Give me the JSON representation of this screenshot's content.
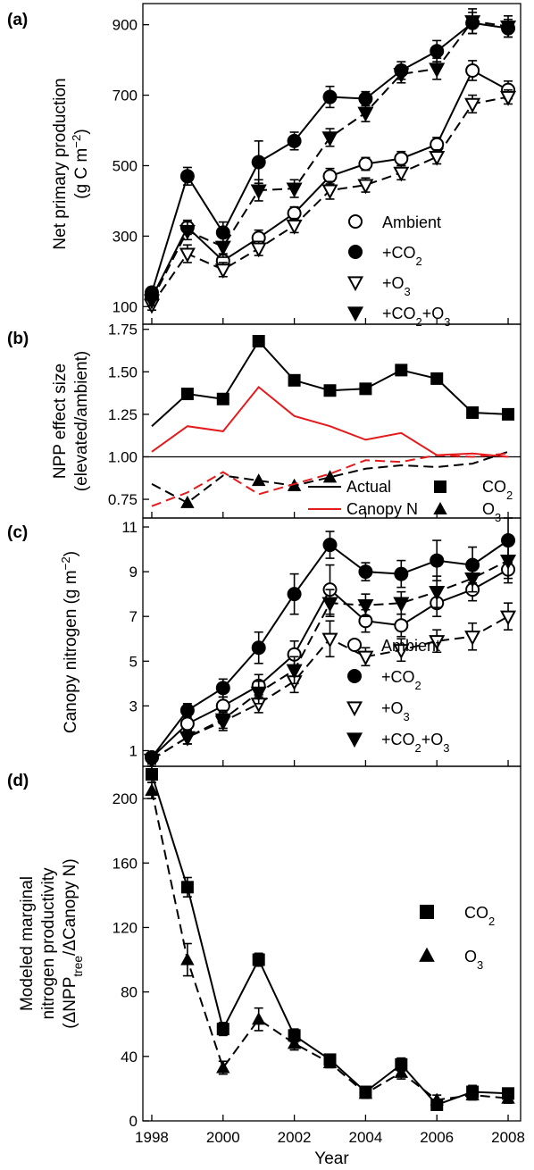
{
  "chart_data": [
    {
      "panel": "(a)",
      "type": "line",
      "ylabel_lines": [
        "Net primary production",
        "(g C m⁻²)"
      ],
      "ylim": [
        50,
        960
      ],
      "yticks": [
        100,
        300,
        500,
        700,
        900
      ],
      "x": [
        1998,
        1999,
        2000,
        2001,
        2002,
        2003,
        2004,
        2005,
        2006,
        2007,
        2008
      ],
      "series": [
        {
          "name": "Ambient",
          "marker": "circle-open",
          "dash": false,
          "values": [
            125,
            325,
            230,
            295,
            365,
            470,
            505,
            520,
            560,
            770,
            715
          ],
          "err": [
            15,
            20,
            20,
            22,
            18,
            22,
            18,
            20,
            20,
            28,
            25
          ]
        },
        {
          "name": "+CO₂",
          "marker": "circle-filled",
          "dash": false,
          "values": [
            140,
            470,
            310,
            510,
            570,
            695,
            690,
            770,
            825,
            905,
            890
          ],
          "err": [
            15,
            25,
            30,
            60,
            25,
            30,
            20,
            25,
            30,
            30,
            25
          ]
        },
        {
          "name": "+O₃",
          "marker": "tri-down-open",
          "dash": true,
          "values": [
            105,
            250,
            205,
            265,
            330,
            430,
            445,
            480,
            525,
            675,
            695
          ],
          "err": [
            15,
            25,
            20,
            20,
            20,
            25,
            20,
            20,
            20,
            25,
            20
          ]
        },
        {
          "name": "+CO₂+O₃",
          "marker": "tri-down-filled",
          "dash": true,
          "values": [
            118,
            315,
            270,
            430,
            435,
            580,
            650,
            760,
            775,
            910,
            895
          ],
          "err": [
            15,
            25,
            30,
            30,
            25,
            25,
            25,
            25,
            30,
            35,
            30
          ]
        }
      ],
      "legend": [
        "Ambient",
        "+CO₂",
        "+O₃",
        "+CO₂+O₃"
      ]
    },
    {
      "panel": "(b)",
      "type": "line",
      "ylabel_lines": [
        "NPP effect size",
        "(elevated/ambient)"
      ],
      "ylim": [
        0.64,
        1.78
      ],
      "yticks": [
        0.75,
        1.0,
        1.25,
        1.5,
        1.75
      ],
      "ytick_labels": [
        "0.75",
        "1.00",
        "1.25",
        "1.50",
        "1.75"
      ],
      "reference_y": 1.0,
      "x": [
        1998,
        1999,
        2000,
        2001,
        2002,
        2003,
        2004,
        2005,
        2006,
        2007,
        2008
      ],
      "series": [
        {
          "name": "CO₂ actual",
          "color": "#000000",
          "dash": false,
          "marker": "square",
          "values": [
            1.18,
            1.37,
            1.34,
            1.68,
            1.45,
            1.39,
            1.4,
            1.51,
            1.46,
            1.26,
            1.25
          ]
        },
        {
          "name": "CO₂ canopy N",
          "color": "#e41a1c",
          "dash": false,
          "marker": "none",
          "values": [
            1.03,
            1.18,
            1.15,
            1.41,
            1.24,
            1.18,
            1.1,
            1.14,
            1.01,
            1.02,
            1.0
          ]
        },
        {
          "name": "O₃ actual",
          "color": "#000000",
          "dash": true,
          "marker": "triangle",
          "values": [
            0.84,
            0.73,
            0.89,
            0.86,
            0.83,
            0.88,
            0.93,
            0.95,
            0.94,
            0.96,
            1.03
          ]
        },
        {
          "name": "O₃ canopy N",
          "color": "#e41a1c",
          "dash": true,
          "marker": "none",
          "values": [
            0.71,
            0.79,
            0.91,
            0.78,
            0.84,
            0.9,
            0.98,
            0.97,
            1.01,
            1.0,
            1.02
          ]
        }
      ],
      "legend": {
        "lines": [
          "Actual",
          "Canopy N"
        ],
        "markers": [
          "CO₂",
          "O₃"
        ]
      }
    },
    {
      "panel": "(c)",
      "type": "line",
      "ylabel_lines": [
        "Canopy nitrogen (g m⁻²)"
      ],
      "ylim": [
        0.3,
        11.4
      ],
      "yticks": [
        1,
        3,
        5,
        7,
        9,
        11
      ],
      "x": [
        1998,
        1999,
        2000,
        2001,
        2002,
        2003,
        2004,
        2005,
        2006,
        2007,
        2008
      ],
      "series": [
        {
          "name": "Ambient",
          "marker": "circle-open",
          "dash": false,
          "values": [
            0.7,
            2.2,
            3.0,
            3.9,
            5.3,
            8.2,
            6.8,
            6.6,
            7.6,
            8.2,
            9.1
          ],
          "err": [
            0.2,
            0.4,
            0.4,
            0.5,
            0.6,
            1.1,
            0.5,
            0.5,
            0.6,
            0.5,
            0.6
          ]
        },
        {
          "name": "+CO₂",
          "marker": "circle-filled",
          "dash": false,
          "values": [
            0.7,
            2.8,
            3.8,
            5.6,
            8.0,
            10.2,
            9.0,
            8.9,
            9.5,
            9.3,
            10.4
          ],
          "err": [
            0.2,
            0.3,
            0.4,
            0.7,
            0.9,
            0.6,
            0.4,
            0.6,
            0.9,
            0.8,
            1.0
          ]
        },
        {
          "name": "+O₃",
          "marker": "tri-down-open",
          "dash": true,
          "values": [
            0.6,
            1.6,
            2.3,
            3.1,
            4.1,
            6.0,
            5.2,
            5.5,
            5.9,
            6.1,
            7.0
          ],
          "err": [
            0.2,
            0.3,
            0.4,
            0.4,
            0.5,
            0.8,
            0.4,
            0.5,
            0.5,
            0.6,
            0.6
          ]
        },
        {
          "name": "+CO₂+O₃",
          "marker": "tri-down-filled",
          "dash": true,
          "values": [
            0.6,
            1.6,
            2.4,
            3.6,
            4.6,
            7.6,
            7.5,
            7.6,
            8.1,
            8.7,
            9.5
          ],
          "err": [
            0.2,
            0.3,
            0.4,
            0.5,
            0.6,
            0.6,
            0.5,
            0.5,
            0.7,
            0.6,
            0.8
          ]
        }
      ],
      "legend": [
        "Ambient",
        "+CO₂",
        "+O₃",
        "+CO₂+O₃"
      ]
    },
    {
      "panel": "(d)",
      "type": "line",
      "ylabel_lines": [
        "Modeled marginal",
        "nitrogen productivity",
        "(ΔNPPtree/ΔCanopy N)"
      ],
      "ylim": [
        0,
        220
      ],
      "yticks": [
        0,
        40,
        80,
        120,
        160,
        200
      ],
      "x": [
        1998,
        1999,
        2000,
        2001,
        2002,
        2003,
        2004,
        2005,
        2006,
        2007,
        2008
      ],
      "xticks": [
        1998,
        2000,
        2002,
        2004,
        2006,
        2008
      ],
      "xlabel": "Year",
      "series": [
        {
          "name": "CO₂",
          "marker": "square",
          "dash": false,
          "values": [
            215,
            145,
            57,
            100,
            53,
            38,
            18,
            35,
            10,
            18,
            17
          ],
          "err": [
            5,
            6,
            4,
            4,
            4,
            3,
            3,
            4,
            3,
            4,
            3
          ]
        },
        {
          "name": "O₃",
          "marker": "triangle",
          "dash": true,
          "values": [
            205,
            100,
            33,
            63,
            48,
            36,
            17,
            30,
            13,
            16,
            14
          ],
          "err": [
            5,
            10,
            4,
            7,
            4,
            3,
            3,
            4,
            3,
            3,
            3
          ]
        }
      ],
      "legend": [
        "CO₂",
        "O₃"
      ]
    }
  ]
}
